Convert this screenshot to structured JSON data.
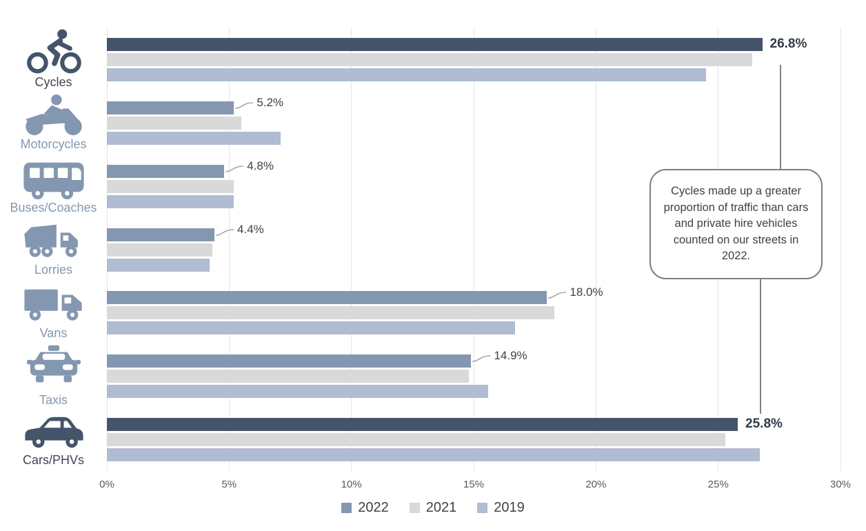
{
  "chart_data": {
    "type": "bar",
    "orientation": "horizontal",
    "title": "",
    "xlabel": "",
    "ylabel": "",
    "xlim": [
      0,
      30
    ],
    "x_ticks": [
      "0%",
      "5%",
      "10%",
      "15%",
      "20%",
      "25%",
      "30%"
    ],
    "grid": "vertical gridlines every 5%",
    "legend_position": "bottom-center",
    "categories": [
      {
        "label": "Cycles",
        "icon": "cyclist-icon",
        "highlighted": true
      },
      {
        "label": "Motorcycles",
        "icon": "motorcycle-icon",
        "highlighted": false
      },
      {
        "label": "Buses/Coaches",
        "icon": "bus-icon",
        "highlighted": false
      },
      {
        "label": "Lorries",
        "icon": "lorry-icon",
        "highlighted": false
      },
      {
        "label": "Vans",
        "icon": "van-icon",
        "highlighted": false
      },
      {
        "label": "Taxis",
        "icon": "taxi-icon",
        "highlighted": false
      },
      {
        "label": "Cars/PHVs",
        "icon": "car-icon",
        "highlighted": true
      }
    ],
    "series": [
      {
        "name": "2022",
        "color": "#8497B0",
        "highlight_color": "#44546A",
        "values": [
          26.8,
          5.2,
          4.8,
          4.4,
          18.0,
          14.9,
          25.8
        ]
      },
      {
        "name": "2021",
        "color": "#D9D9D9",
        "values": [
          26.4,
          5.5,
          5.2,
          4.3,
          18.3,
          14.8,
          25.3
        ]
      },
      {
        "name": "2019",
        "color": "#AFBCD2",
        "values": [
          24.5,
          7.1,
          5.2,
          4.2,
          16.7,
          15.6,
          26.7
        ]
      }
    ],
    "data_labels": [
      "26.8%",
      "5.2%",
      "4.8%",
      "4.4%",
      "18.0%",
      "14.9%",
      "25.8%"
    ],
    "annotation": {
      "text": "Cycles made up a greater proportion of traffic than cars and private hire vehicles counted on our streets in 2022.",
      "border_color": "#7F7F7F",
      "connector_color": "#808080"
    },
    "colors": {
      "highlight_bar": "#44546A",
      "bar_2022": "#8497B0",
      "bar_2021": "#D9D9D9",
      "bar_2019": "#AFBCD2",
      "gridline": "#E2E5E9",
      "tick_text": "#595959",
      "label_text": "#404040",
      "highlight_label_text": "#333A46",
      "category_text_normal": "#8497B0",
      "category_text_highlight": "#3D4654"
    }
  }
}
